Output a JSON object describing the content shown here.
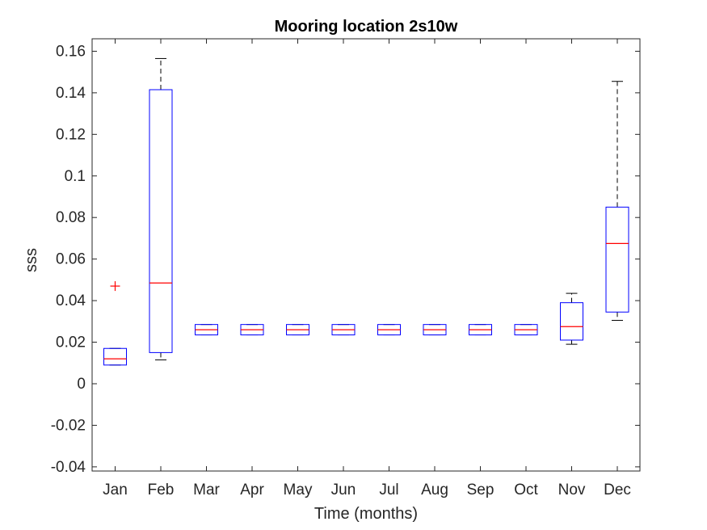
{
  "chart_data": {
    "type": "boxplot",
    "title": "Mooring location 2s10w",
    "xlabel": "Time (months)",
    "ylabel": "sss",
    "ylim": [
      -0.042,
      0.166
    ],
    "yticks": [
      -0.04,
      -0.02,
      0,
      0.02,
      0.04,
      0.06,
      0.08,
      0.1,
      0.12,
      0.14,
      0.16
    ],
    "ytick_labels": [
      "-0.04",
      "-0.02",
      "0",
      "0.02",
      "0.04",
      "0.06",
      "0.08",
      "0.1",
      "0.12",
      "0.14",
      "0.16"
    ],
    "categories": [
      "Jan",
      "Feb",
      "Mar",
      "Apr",
      "May",
      "Jun",
      "Jul",
      "Aug",
      "Sep",
      "Oct",
      "Nov",
      "Dec"
    ],
    "grid": false,
    "colors": {
      "box": "#0000ff",
      "median": "#ff0000",
      "whisker": "#000000",
      "outlier": "#ff0000",
      "axis": "#262626"
    },
    "boxes": [
      {
        "month": "Jan",
        "whisker_low": 0.009,
        "q1": 0.009,
        "median": 0.012,
        "q3": 0.017,
        "whisker_high": 0.017,
        "outliers": [
          0.047
        ]
      },
      {
        "month": "Feb",
        "whisker_low": 0.0115,
        "q1": 0.015,
        "median": 0.0485,
        "q3": 0.1415,
        "whisker_high": 0.1565,
        "outliers": []
      },
      {
        "month": "Mar",
        "whisker_low": 0.0235,
        "q1": 0.0235,
        "median": 0.026,
        "q3": 0.0285,
        "whisker_high": 0.0285,
        "outliers": []
      },
      {
        "month": "Apr",
        "whisker_low": 0.0235,
        "q1": 0.0235,
        "median": 0.026,
        "q3": 0.0285,
        "whisker_high": 0.0285,
        "outliers": []
      },
      {
        "month": "May",
        "whisker_low": 0.0235,
        "q1": 0.0235,
        "median": 0.026,
        "q3": 0.0285,
        "whisker_high": 0.0285,
        "outliers": []
      },
      {
        "month": "Jun",
        "whisker_low": 0.0235,
        "q1": 0.0235,
        "median": 0.026,
        "q3": 0.0285,
        "whisker_high": 0.0285,
        "outliers": []
      },
      {
        "month": "Jul",
        "whisker_low": 0.0235,
        "q1": 0.0235,
        "median": 0.026,
        "q3": 0.0285,
        "whisker_high": 0.0285,
        "outliers": []
      },
      {
        "month": "Aug",
        "whisker_low": 0.0235,
        "q1": 0.0235,
        "median": 0.026,
        "q3": 0.0285,
        "whisker_high": 0.0285,
        "outliers": []
      },
      {
        "month": "Sep",
        "whisker_low": 0.0235,
        "q1": 0.0235,
        "median": 0.026,
        "q3": 0.0285,
        "whisker_high": 0.0285,
        "outliers": []
      },
      {
        "month": "Oct",
        "whisker_low": 0.0235,
        "q1": 0.0235,
        "median": 0.026,
        "q3": 0.0285,
        "whisker_high": 0.0285,
        "outliers": []
      },
      {
        "month": "Nov",
        "whisker_low": 0.019,
        "q1": 0.021,
        "median": 0.0275,
        "q3": 0.039,
        "whisker_high": 0.0435,
        "outliers": []
      },
      {
        "month": "Dec",
        "whisker_low": 0.0305,
        "q1": 0.0345,
        "median": 0.0675,
        "q3": 0.085,
        "whisker_high": 0.1455,
        "outliers": []
      }
    ]
  }
}
